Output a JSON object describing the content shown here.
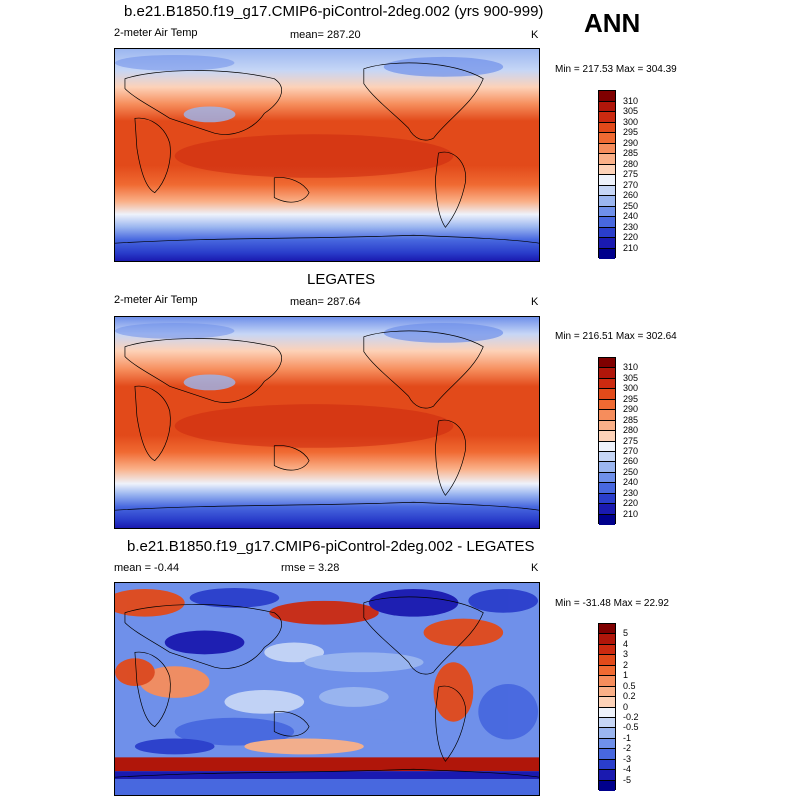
{
  "season": "ANN",
  "panels": [
    {
      "title": "b.e21.B1850.f19_g17.CMIP6-piControl-2deg.002 (yrs 900-999)",
      "left_label": "2-meter Air Temp",
      "center_label": "mean= 287.20",
      "right_label": "K",
      "minmax": "Min = 217.53 Max = 304.39",
      "colorbar": {
        "labels": [
          "310",
          "305",
          "300",
          "295",
          "290",
          "285",
          "280",
          "275",
          "270",
          "260",
          "250",
          "240",
          "230",
          "220",
          "210"
        ],
        "colors": [
          "#7f0000",
          "#b0160a",
          "#cc2a10",
          "#e24a1a",
          "#f06a32",
          "#f68d5c",
          "#fab088",
          "#fdd2b8",
          "#eef2fb",
          "#c6d6f6",
          "#9bb6f0",
          "#6f90ea",
          "#4868df",
          "#2a3ecb",
          "#1a1ab0",
          "#00008c"
        ]
      }
    },
    {
      "title": "LEGATES",
      "left_label": "2-meter Air Temp",
      "center_label": "mean= 287.64",
      "right_label": "K",
      "minmax": "Min = 216.51 Max = 302.64",
      "colorbar": {
        "labels": [
          "310",
          "305",
          "300",
          "295",
          "290",
          "285",
          "280",
          "275",
          "270",
          "260",
          "250",
          "240",
          "230",
          "220",
          "210"
        ],
        "colors": [
          "#7f0000",
          "#b0160a",
          "#cc2a10",
          "#e24a1a",
          "#f06a32",
          "#f68d5c",
          "#fab088",
          "#fdd2b8",
          "#eef2fb",
          "#c6d6f6",
          "#9bb6f0",
          "#6f90ea",
          "#4868df",
          "#2a3ecb",
          "#1a1ab0",
          "#00008c"
        ]
      }
    },
    {
      "title": "b.e21.B1850.f19_g17.CMIP6-piControl-2deg.002 - LEGATES",
      "left_label": "mean =  -0.44",
      "center_label": "rmse =   3.28",
      "right_label": "K",
      "minmax": "Min = -31.48 Max =  22.92",
      "colorbar": {
        "labels": [
          "5",
          "4",
          "3",
          "2",
          "1",
          "0.5",
          "0.2",
          "0",
          "-0.2",
          "-0.5",
          "-1",
          "-2",
          "-3",
          "-4",
          "-5"
        ],
        "colors": [
          "#7f0000",
          "#b0160a",
          "#cc2a10",
          "#e24a1a",
          "#f06a32",
          "#f68d5c",
          "#fab088",
          "#fdd2b8",
          "#eef2fb",
          "#c6d6f6",
          "#9bb6f0",
          "#6f90ea",
          "#4868df",
          "#2a3ecb",
          "#1a1ab0",
          "#00008c"
        ]
      }
    }
  ]
}
